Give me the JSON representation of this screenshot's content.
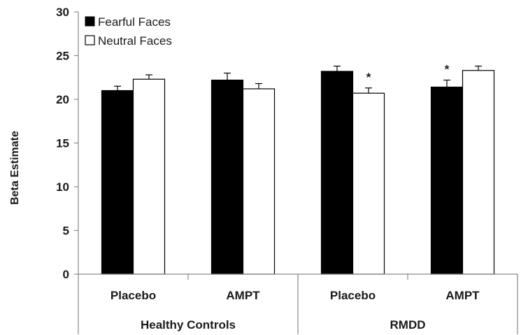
{
  "chart_data": {
    "type": "bar",
    "ylabel": "Beta Estimate",
    "ylim": [
      0,
      30
    ],
    "yticks": [
      0,
      5,
      10,
      15,
      20,
      25,
      30
    ],
    "categories": [
      "Placebo",
      "AMPT",
      "Placebo",
      "AMPT"
    ],
    "groups": [
      {
        "label": "Healthy Controls",
        "categories": [
          0,
          1
        ]
      },
      {
        "label": "RMDD",
        "categories": [
          2,
          3
        ]
      }
    ],
    "series": [
      {
        "name": "Fearful Faces",
        "color": "#000000",
        "values": [
          21.0,
          22.2,
          23.2,
          21.4
        ],
        "errors": [
          0.5,
          0.8,
          0.6,
          0.8
        ]
      },
      {
        "name": "Neutral Faces",
        "color": "#ffffff",
        "values": [
          22.3,
          21.2,
          20.7,
          23.3
        ],
        "errors": [
          0.5,
          0.6,
          0.6,
          0.5
        ]
      }
    ],
    "annotations": [
      {
        "text": "*",
        "category": 2,
        "series": 1
      },
      {
        "text": "*",
        "category": 3,
        "series": 0
      }
    ],
    "legend_position": "top-left",
    "grid": false
  }
}
